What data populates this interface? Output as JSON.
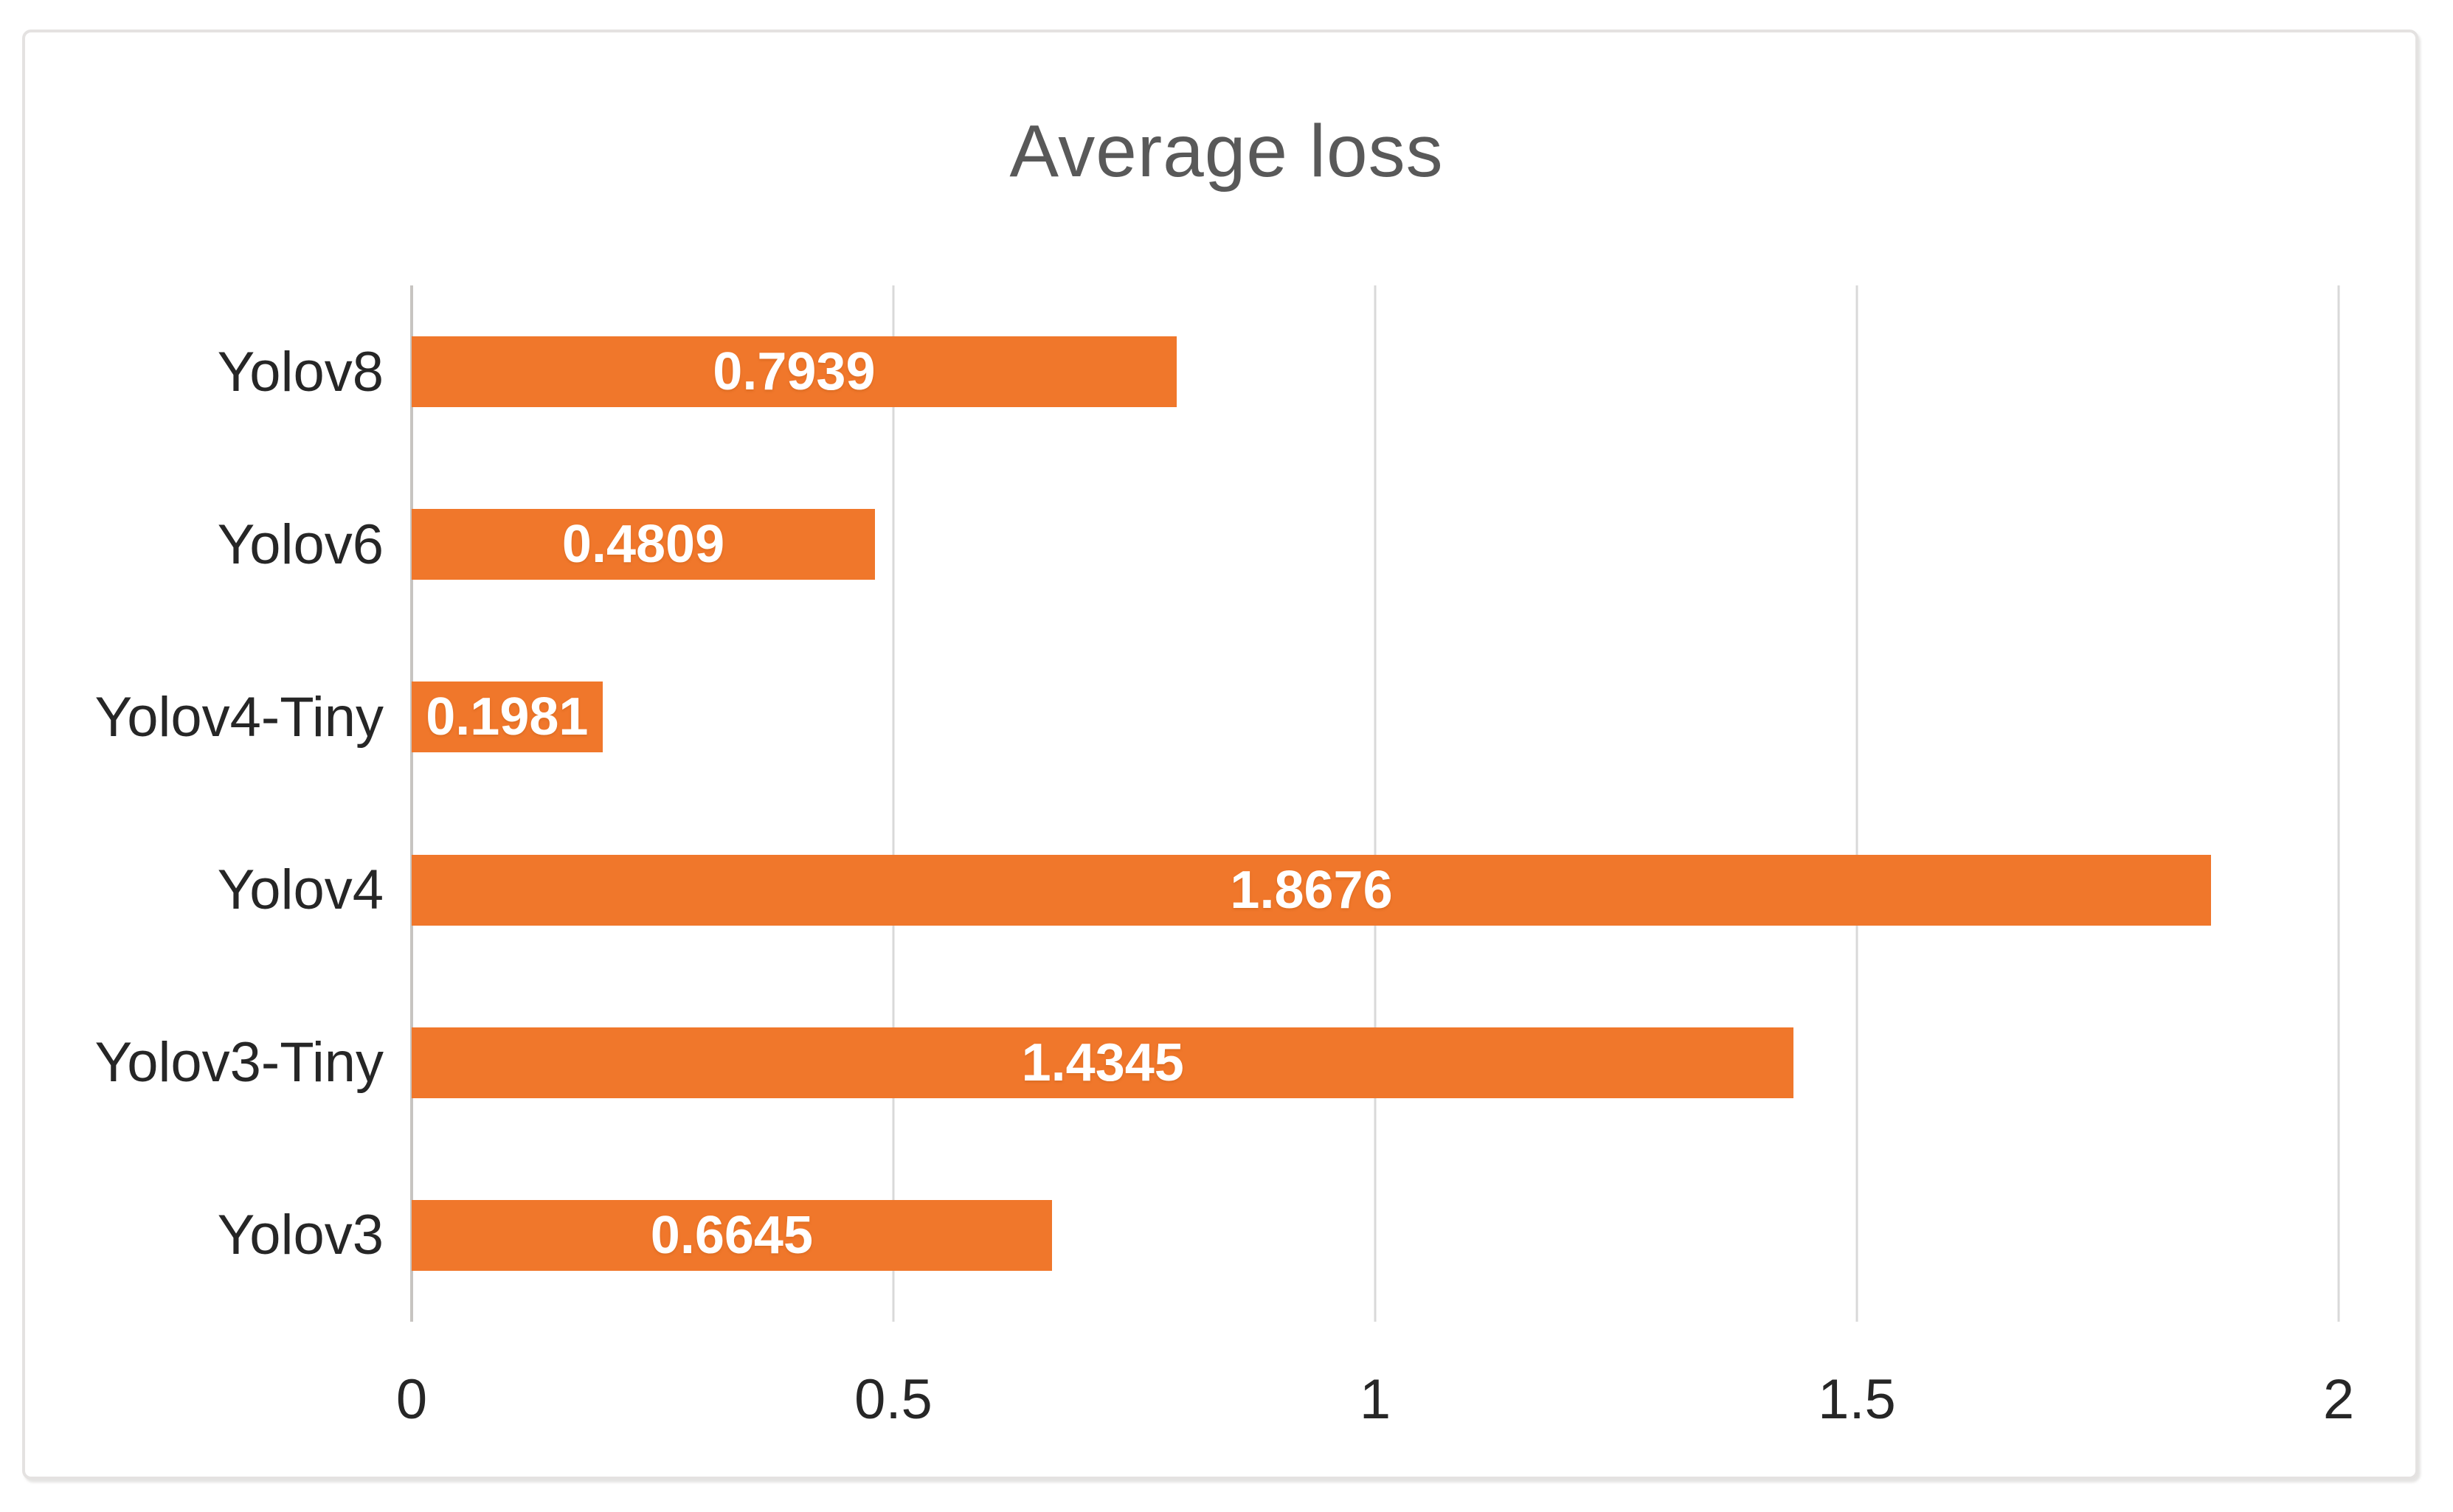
{
  "chart_data": {
    "type": "bar",
    "orientation": "horizontal",
    "title": "Average loss",
    "categories": [
      "Yolov8",
      "Yolov6",
      "Yolov4-Tiny",
      "Yolov4",
      "Yolov3-Tiny",
      "Yolov3"
    ],
    "values": [
      0.7939,
      0.4809,
      0.1981,
      1.8676,
      1.4345,
      0.6645
    ],
    "value_labels": [
      "0.7939",
      "0.4809",
      "0.1981",
      "1.8676",
      "1.4345",
      "0.6645"
    ],
    "x_ticks": [
      0,
      0.5,
      1,
      1.5,
      2
    ],
    "x_tick_labels": [
      "0",
      "0.5",
      "1",
      "1.5",
      "2"
    ],
    "xlim": [
      0,
      2
    ],
    "grid": "vertical-gridlines-on",
    "legend": "none",
    "colors": {
      "bar_fill": "#f0772b",
      "value_text": "#ffffff",
      "gridline": "#d9d9d9",
      "axis_line": "#c7c4c1",
      "title_text": "#595959",
      "label_text": "#262626",
      "frame_border": "#e4e2e1",
      "background": "#ffffff"
    }
  }
}
